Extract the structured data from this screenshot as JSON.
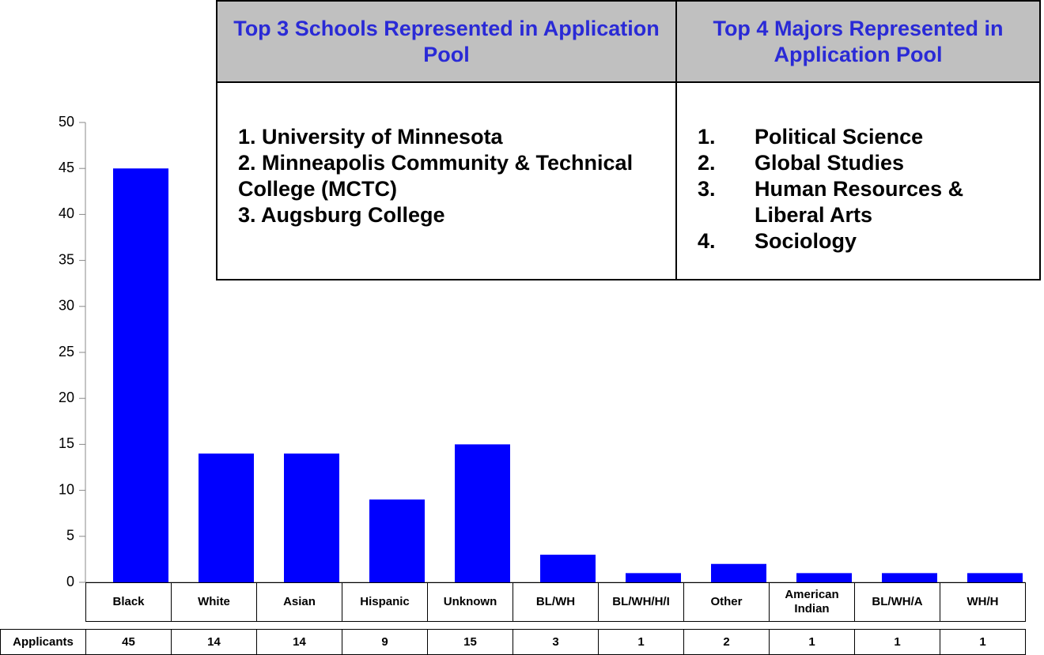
{
  "chart_data": {
    "type": "bar",
    "categories": [
      "Black",
      "White",
      "Asian",
      "Hispanic",
      "Unknown",
      "BL/WH",
      "BL/WH/H/I",
      "Other",
      "American Indian",
      "BL/WH/A",
      "WH/H"
    ],
    "series": [
      {
        "name": "Applicants",
        "color": "#0000ff",
        "values": [
          45,
          14,
          14,
          9,
          15,
          3,
          1,
          2,
          1,
          1,
          1
        ]
      }
    ],
    "ylim": [
      0,
      50
    ],
    "yticks": [
      0,
      5,
      10,
      15,
      20,
      25,
      30,
      35,
      40,
      45,
      50
    ]
  },
  "table": {
    "columns": [
      {
        "header": "Top 3 Schools Represented in Application Pool",
        "items": [
          "1. University of Minnesota",
          "2. Minneapolis Community & Technical College (MCTC)",
          "3.  Augsburg College"
        ]
      },
      {
        "header": "Top 4 Majors Represented in Application Pool",
        "items": [
          {
            "number": "1.",
            "text": "Political Science"
          },
          {
            "number": "2.",
            "text": "Global Studies"
          },
          {
            "number": "3.",
            "text": "Human Resources & Liberal Arts"
          },
          {
            "number": "4.",
            "text": "Sociology"
          }
        ]
      }
    ]
  }
}
